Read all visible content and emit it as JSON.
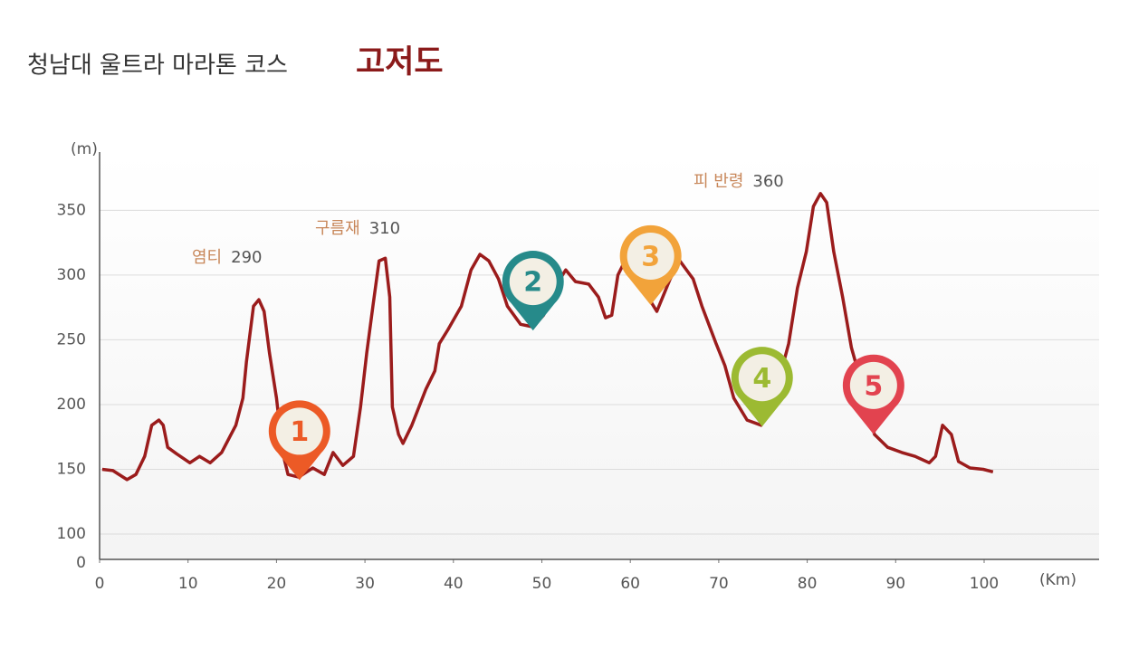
{
  "chart_data": {
    "type": "line",
    "title": "청남대 울트라 마라톤 코스",
    "title_emphasis": "고저도",
    "y_label": "(m)",
    "x_label": "(Km)",
    "xlim": [
      0,
      113
    ],
    "xticks": [
      0,
      10,
      20,
      30,
      40,
      50,
      60,
      70,
      80,
      90,
      100
    ],
    "ylim": [
      0,
      395
    ],
    "yticks": [
      0,
      100,
      150,
      200,
      250,
      300,
      350
    ],
    "grid": true,
    "x": [
      0.3,
      1.5,
      3.1,
      4.1,
      5.1,
      5.9,
      6.7,
      7.2,
      7.7,
      8.7,
      10.2,
      11.3,
      12.5,
      13.8,
      15.4,
      16.2,
      16.6,
      17.4,
      18.0,
      18.6,
      19.2,
      20.0,
      20.7,
      21.3,
      22.5,
      24.1,
      25.4,
      26.4,
      27.5,
      28.7,
      29.5,
      30.2,
      30.9,
      31.6,
      32.3,
      32.8,
      33.1,
      33.8,
      34.3,
      35.3,
      36.9,
      37.9,
      38.4,
      39.4,
      40.9,
      42.0,
      43.0,
      44.0,
      45.1,
      46.1,
      47.6,
      49.0,
      50.2,
      51.4,
      52.7,
      53.8,
      55.3,
      56.4,
      57.2,
      57.9,
      58.6,
      59.4,
      60.5,
      62.0,
      63.0,
      64.5,
      65.6,
      67.1,
      68.1,
      69.7,
      70.7,
      71.7,
      73.2,
      74.8,
      75.8,
      76.8,
      77.9,
      78.9,
      79.9,
      80.7,
      81.5,
      82.2,
      83.0,
      84.0,
      85.0,
      86.6,
      87.6,
      89.1,
      90.7,
      92.2,
      93.8,
      94.5,
      95.3,
      96.3,
      97.1,
      98.4,
      99.9,
      101.0
    ],
    "series": [
      {
        "color": "#9b1c1c",
        "values": [
          150,
          149,
          142,
          146,
          160,
          184,
          188,
          184,
          167,
          162,
          155,
          160,
          155,
          163,
          184,
          205,
          233,
          276,
          281,
          272,
          240,
          205,
          163,
          146,
          144,
          151,
          146,
          163,
          153,
          160,
          198,
          240,
          276,
          311,
          313,
          283,
          198,
          177,
          170,
          184,
          212,
          226,
          247,
          258,
          276,
          304,
          316,
          311,
          297,
          276,
          262,
          260,
          269,
          290,
          304,
          295,
          293,
          283,
          267,
          269,
          300,
          311,
          304,
          283,
          272,
          297,
          311,
          297,
          276,
          247,
          230,
          205,
          188,
          184,
          202,
          219,
          247,
          290,
          318,
          353,
          363,
          356,
          318,
          283,
          244,
          205,
          177,
          167,
          163,
          160,
          155,
          160,
          184,
          177,
          156,
          151,
          150,
          148
        ]
      }
    ],
    "annotations": [
      {
        "name": "염티",
        "value": 290
      },
      {
        "name": "구름재",
        "value": 310
      },
      {
        "name": "피 반령",
        "value": 360
      }
    ],
    "markers": [
      {
        "label": "1",
        "x": 22.6,
        "color": "#ec5a26"
      },
      {
        "label": "2",
        "x": 49.0,
        "color": "#268a8a"
      },
      {
        "label": "3",
        "x": 62.3,
        "color": "#f2a33a"
      },
      {
        "label": "4",
        "x": 74.9,
        "color": "#9cba32"
      },
      {
        "label": "5",
        "x": 87.5,
        "color": "#e2434f"
      }
    ]
  }
}
